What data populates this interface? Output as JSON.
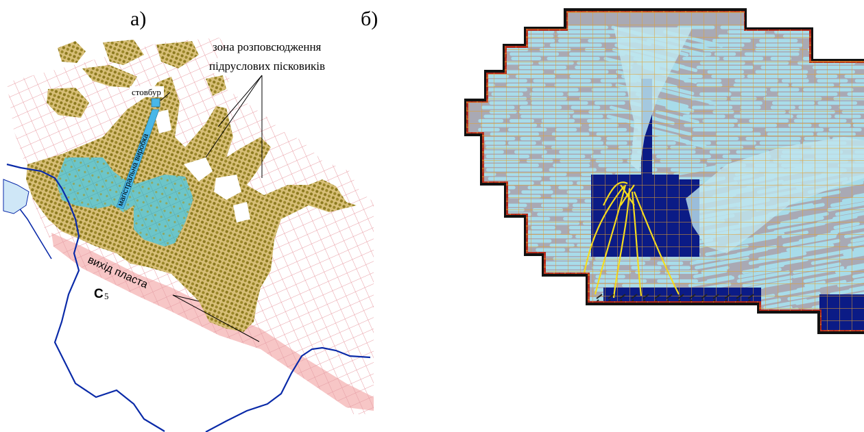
{
  "panel_a": {
    "label": "а)",
    "zone_label_line1": "зона розповсюдження",
    "zone_label_line2": "підруслових пісковиків",
    "shaft_label": "стовбур",
    "drift_label": "магістральна виробка",
    "outcrop_label": "вихід пласта",
    "seam_label": "C",
    "seam_sub": "5",
    "colors": {
      "grid": "#e89aa2",
      "sandstone": "#d2b56a",
      "sandstone_dots": "#8c7a1e",
      "workings": "#6cc5c9",
      "shaft": "#49b7e8",
      "outcrop": "#f7c6c6",
      "river": "#0a2aa8",
      "water": "#cfe7f7"
    }
  },
  "panel_b": {
    "label": "б)",
    "colors": {
      "model_bg": "#a9a9b4",
      "flow_cyan": "#a8dcea",
      "grid_orange": "#e4a02a",
      "boundary_red": "#b3281b",
      "boundary_black": "#111111",
      "mined_blue": "#0b1b86",
      "flow_yellow": "#f5dd1e"
    }
  }
}
